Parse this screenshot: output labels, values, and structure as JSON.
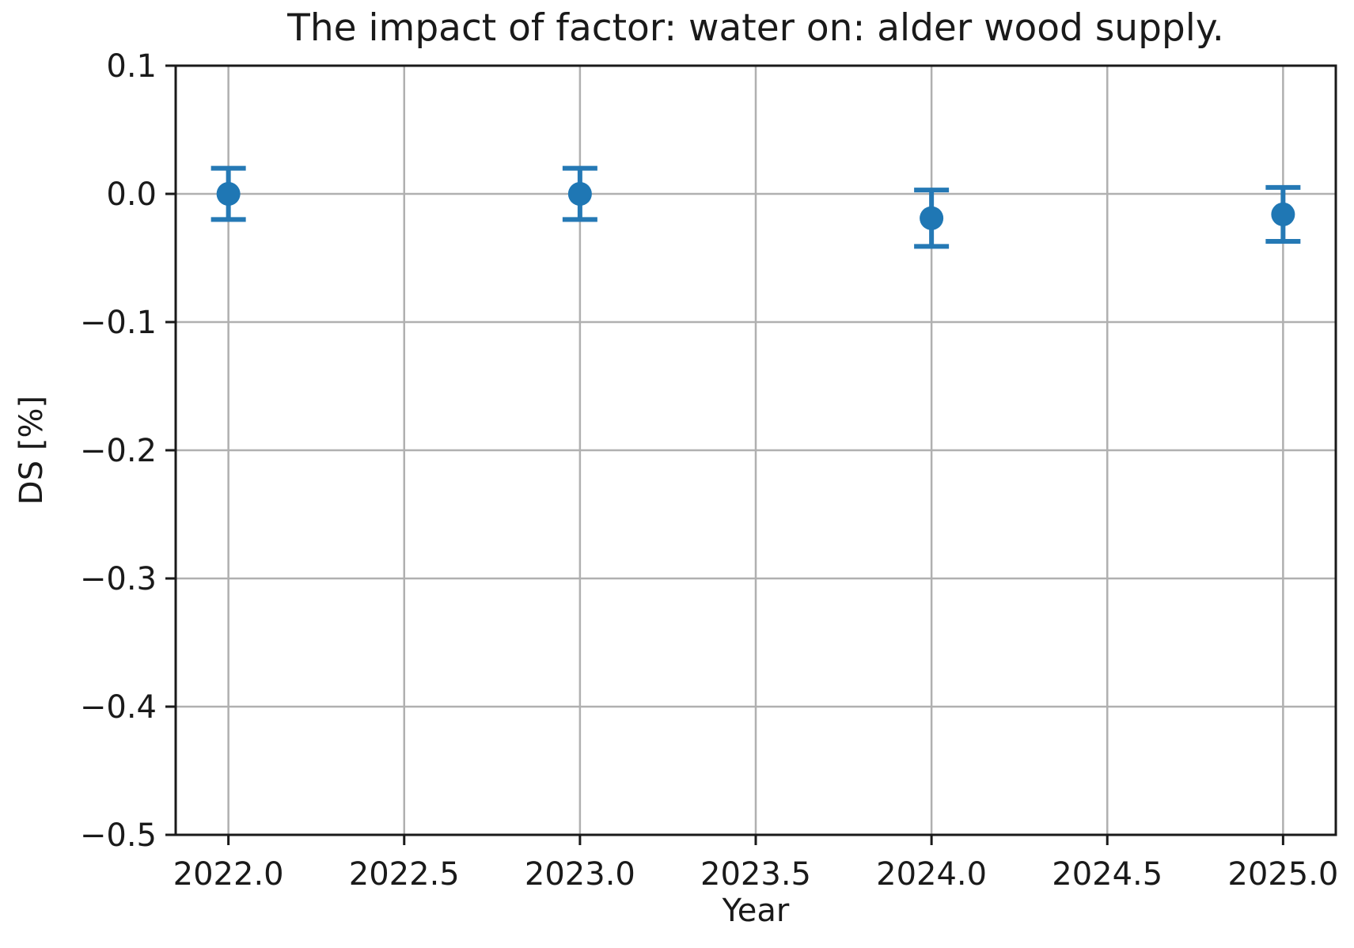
{
  "chart_data": {
    "type": "scatter",
    "subtype": "errorbar",
    "title": "The impact of factor: water on: alder wood supply.",
    "xlabel": "Year",
    "ylabel": "DS [%]",
    "x": [
      2022,
      2023,
      2024,
      2025
    ],
    "y": [
      0.0,
      0.0,
      -0.019,
      -0.016
    ],
    "yerr": [
      0.02,
      0.02,
      0.022,
      0.021
    ],
    "xlim": [
      2021.85,
      2025.15
    ],
    "ylim": [
      -0.5,
      0.1
    ],
    "xticks": [
      2022.0,
      2022.5,
      2023.0,
      2023.5,
      2024.0,
      2024.5,
      2025.0
    ],
    "xtick_labels": [
      "2022.0",
      "2022.5",
      "2023.0",
      "2023.5",
      "2024.0",
      "2024.5",
      "2025.0"
    ],
    "yticks": [
      0.1,
      0.0,
      -0.1,
      -0.2,
      -0.3,
      -0.4,
      -0.5
    ],
    "ytick_labels": [
      "0.1",
      "0.0",
      "−0.1",
      "−0.2",
      "−0.3",
      "−0.4",
      "−0.5"
    ],
    "grid": true,
    "legend": null,
    "colors": {
      "marker": "#1f77b4",
      "errorbar": "#2579b5",
      "grid": "#b0b0b0",
      "spine": "#1a1a1a",
      "text": "#1a1a1a",
      "background": "#ffffff"
    }
  }
}
